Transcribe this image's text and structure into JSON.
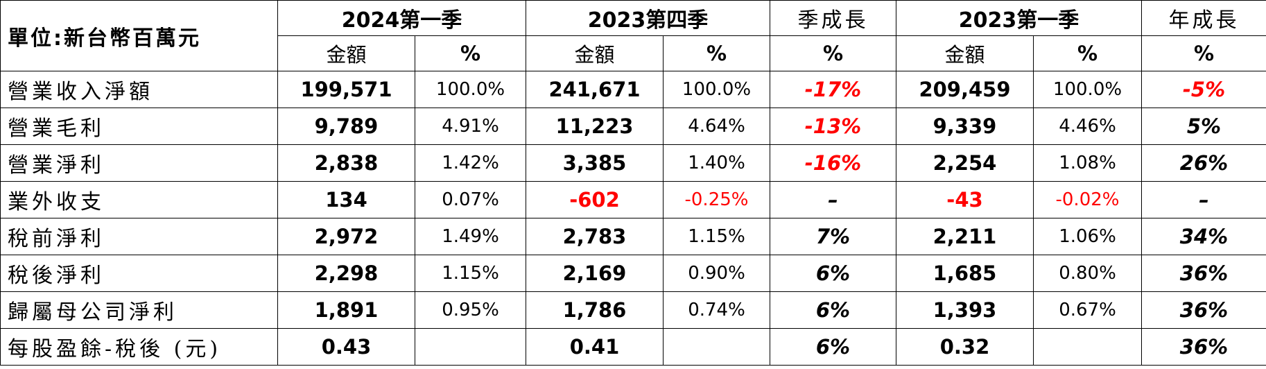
{
  "colors": {
    "negative": "#ff0000",
    "border": "#000000",
    "text": "#000000"
  },
  "header": {
    "unit": "單位:新台幣百萬元",
    "groups": [
      "2024第一季",
      "2023第四季",
      "季成長",
      "2023第一季",
      "年成長"
    ],
    "sub": {
      "amount": "金額",
      "pct": "%"
    }
  },
  "rows": [
    {
      "label": "營業收入淨額",
      "a1": "199,571",
      "p1": "100.0%",
      "a2": "241,671",
      "p2": "100.0%",
      "qoq": "-17%",
      "a3": "209,459",
      "p3": "100.0%",
      "yoy": "-5%"
    },
    {
      "label": "營業毛利",
      "a1": "9,789",
      "p1": "4.91%",
      "a2": "11,223",
      "p2": "4.64%",
      "qoq": "-13%",
      "a3": "9,339",
      "p3": "4.46%",
      "yoy": "5%"
    },
    {
      "label": "營業淨利",
      "a1": "2,838",
      "p1": "1.42%",
      "a2": "3,385",
      "p2": "1.40%",
      "qoq": "-16%",
      "a3": "2,254",
      "p3": "1.08%",
      "yoy": "26%"
    },
    {
      "label": "業外收支",
      "a1": "134",
      "p1": "0.07%",
      "a2": "-602",
      "p2": "-0.25%",
      "qoq": "–",
      "a3": "-43",
      "p3": "-0.02%",
      "yoy": "–"
    },
    {
      "label": "稅前淨利",
      "a1": "2,972",
      "p1": "1.49%",
      "a2": "2,783",
      "p2": "1.15%",
      "qoq": "7%",
      "a3": "2,211",
      "p3": "1.06%",
      "yoy": "34%"
    },
    {
      "label": "稅後淨利",
      "a1": "2,298",
      "p1": "1.15%",
      "a2": "2,169",
      "p2": "0.90%",
      "qoq": "6%",
      "a3": "1,685",
      "p3": "0.80%",
      "yoy": "36%"
    },
    {
      "label": "歸屬母公司淨利",
      "a1": "1,891",
      "p1": "0.95%",
      "a2": "1,786",
      "p2": "0.74%",
      "qoq": "6%",
      "a3": "1,393",
      "p3": "0.67%",
      "yoy": "36%"
    },
    {
      "label": "每股盈餘-稅後 (元)",
      "a1": "0.43",
      "p1": "",
      "a2": "0.41",
      "p2": "",
      "qoq": "6%",
      "a3": "0.32",
      "p3": "",
      "yoy": "36%"
    }
  ]
}
